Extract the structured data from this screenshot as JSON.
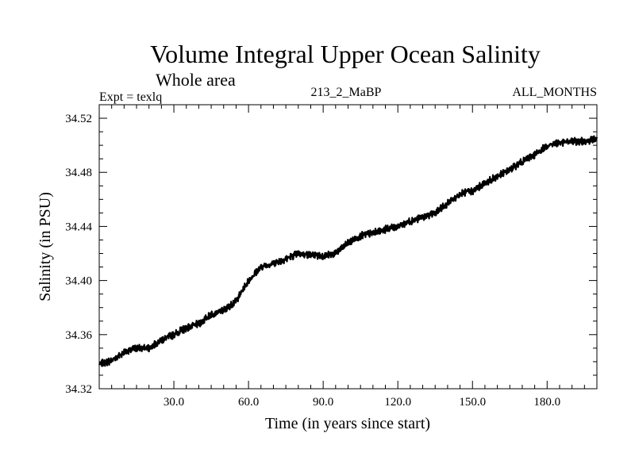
{
  "chart_data": {
    "type": "line",
    "title": "Volume Integral Upper Ocean Salinity",
    "subtitle": "Whole area",
    "experiment_label": "Expt = texlq",
    "run_label": "213_2_MaBP",
    "period_label": "ALL_MONTHS",
    "xlabel": "Time (in years since start)",
    "ylabel": "Salinity (in PSU)",
    "xlim": [
      0,
      200
    ],
    "ylim": [
      34.32,
      34.53
    ],
    "x_ticks": [
      30,
      60,
      90,
      120,
      150,
      180
    ],
    "x_tick_labels": [
      "30.0",
      "60.0",
      "90.0",
      "120.0",
      "150.0",
      "180.0"
    ],
    "y_ticks": [
      34.32,
      34.36,
      34.4,
      34.44,
      34.48,
      34.52
    ],
    "y_tick_labels": [
      "34.32",
      "34.36",
      "34.40",
      "34.44",
      "34.48",
      "34.52"
    ],
    "grid": false,
    "series": [
      {
        "name": "salinity",
        "color": "#000000",
        "x": [
          0,
          5,
          10,
          15,
          20,
          25,
          30,
          35,
          40,
          45,
          50,
          55,
          60,
          65,
          70,
          75,
          80,
          85,
          90,
          95,
          100,
          105,
          110,
          115,
          120,
          125,
          130,
          135,
          140,
          145,
          150,
          155,
          160,
          165,
          170,
          175,
          180,
          185,
          190,
          195,
          200
        ],
        "values": [
          34.338,
          34.341,
          34.347,
          34.35,
          34.35,
          34.356,
          34.36,
          34.365,
          34.368,
          34.375,
          34.378,
          34.385,
          34.4,
          34.41,
          34.413,
          34.416,
          34.42,
          34.419,
          34.418,
          34.42,
          34.428,
          34.433,
          34.435,
          34.438,
          34.44,
          34.444,
          34.447,
          34.45,
          34.457,
          34.464,
          34.466,
          34.472,
          34.477,
          34.482,
          34.488,
          34.493,
          34.5,
          34.502,
          34.503,
          34.503,
          34.505
        ]
      }
    ]
  }
}
